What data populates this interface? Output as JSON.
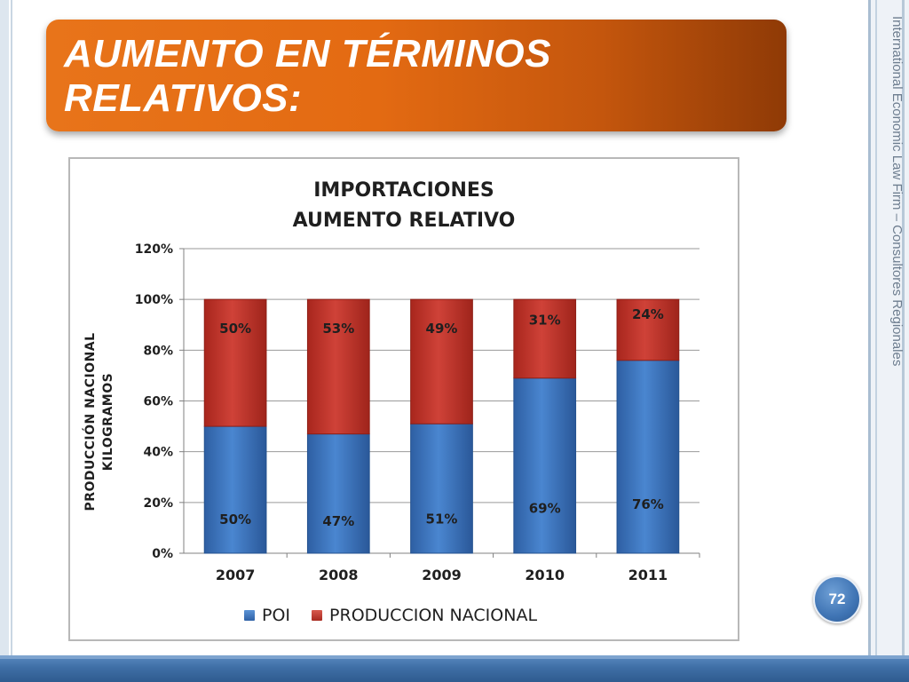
{
  "slide": {
    "title_line1": "AUMENTO EN TÉRMINOS",
    "title_line2": "RELATIVOS:",
    "side_text": "International Economic Law Firm – Consultores Regionales",
    "page_number": "72"
  },
  "colors": {
    "poi": "#3b78c7",
    "produccion": "#c0392b",
    "title_orange": "#e8741a",
    "footer_blue": "#3f6fa6"
  },
  "chart_data": {
    "type": "bar",
    "stacked": true,
    "title_line1": "IMPORTACIONES",
    "title_line2": "AUMENTO RELATIVO",
    "ylabel_line1": "PRODUCCIÓN NACIONAL",
    "ylabel_line2": "KILOGRAMOS",
    "xlabel": "",
    "categories": [
      "2007",
      "2008",
      "2009",
      "2010",
      "2011"
    ],
    "series": [
      {
        "name": "POI",
        "values": [
          50,
          47,
          51,
          69,
          76
        ],
        "labels": [
          "50%",
          "47%",
          "51%",
          "69%",
          "76%"
        ]
      },
      {
        "name": "PRODUCCION NACIONAL",
        "values": [
          50,
          53,
          49,
          31,
          24
        ],
        "labels": [
          "50%",
          "53%",
          "49%",
          "31%",
          "24%"
        ]
      }
    ],
    "yticks": [
      "0%",
      "20%",
      "40%",
      "60%",
      "80%",
      "100%",
      "120%"
    ],
    "ylim": [
      0,
      120
    ],
    "grid": true,
    "legend_position": "bottom"
  }
}
